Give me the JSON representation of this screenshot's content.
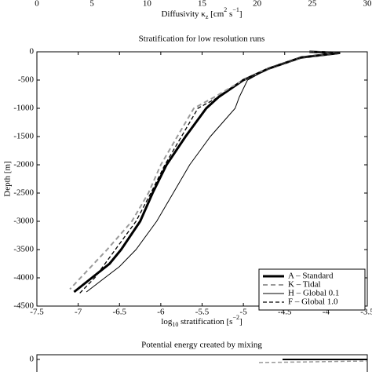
{
  "chart_data": [
    {
      "type": "line",
      "title": "Stratification for low resolution runs",
      "xlabel": [
        "log",
        "10",
        " stratification [s",
        "−2",
        "]"
      ],
      "ylabel": "Depth [m]",
      "top_xlabel": [
        "Diffusivity κ",
        "z",
        " [cm",
        "2",
        " s",
        "−1",
        "]"
      ],
      "xlim": [
        -7.5,
        -3.5
      ],
      "xticks": [
        -7.5,
        -7,
        -6.5,
        -6,
        -5.5,
        -5,
        -4.5,
        -4,
        -3.5
      ],
      "ylim": [
        -4500,
        0
      ],
      "yticks": [
        0,
        -500,
        -1000,
        -1500,
        -2000,
        -2500,
        -3000,
        -3500,
        -4000,
        -4500
      ],
      "top_xlim": [
        0,
        30
      ],
      "top_xticks": [
        0,
        5,
        10,
        15,
        20,
        25,
        30
      ],
      "legend": "lower right",
      "series": [
        {
          "name": "A – Standard",
          "color": "#000000",
          "width": 3,
          "dash": "none",
          "x": [
            -4.2,
            -3.83,
            -4.3,
            -4.7,
            -5.0,
            -5.3,
            -5.45,
            -5.7,
            -5.93,
            -6.1,
            -6.25,
            -6.48,
            -6.62,
            -7.05
          ],
          "y": [
            0,
            -20,
            -100,
            -300,
            -500,
            -800,
            -1000,
            -1500,
            -2000,
            -2500,
            -3000,
            -3500,
            -3750,
            -4250
          ]
        },
        {
          "name": "K – Tidal",
          "color": "#999999",
          "width": 2,
          "dash": "6,4",
          "x": [
            -4.2,
            -3.83,
            -4.3,
            -4.7,
            -5.0,
            -5.35,
            -5.6,
            -5.8,
            -6.0,
            -6.15,
            -6.35,
            -6.65,
            -7.1
          ],
          "y": [
            0,
            -20,
            -100,
            -300,
            -500,
            -800,
            -1000,
            -1500,
            -2000,
            -2500,
            -3000,
            -3500,
            -4200
          ]
        },
        {
          "name": "H – Global 0.1",
          "color": "#000000",
          "width": 1,
          "dash": "none",
          "x": [
            -4.2,
            -3.83,
            -4.3,
            -4.7,
            -4.95,
            -5.05,
            -5.1,
            -5.4,
            -5.65,
            -5.85,
            -6.05,
            -6.3,
            -6.5,
            -6.9
          ],
          "y": [
            0,
            -20,
            -100,
            -300,
            -500,
            -800,
            -1000,
            -1500,
            -2000,
            -2500,
            -3000,
            -3500,
            -3800,
            -4250
          ]
        },
        {
          "name": "F – Global 1.0",
          "color": "#000000",
          "width": 1.3,
          "dash": "5,3",
          "x": [
            -4.2,
            -3.83,
            -4.3,
            -4.7,
            -5.0,
            -5.3,
            -5.55,
            -5.75,
            -5.95,
            -6.12,
            -6.3,
            -6.55,
            -6.8,
            -7.0
          ],
          "y": [
            0,
            -20,
            -100,
            -300,
            -500,
            -800,
            -1000,
            -1500,
            -2000,
            -2500,
            -3000,
            -3500,
            -4000,
            -4300
          ]
        }
      ]
    },
    {
      "type": "line",
      "title": "Potential energy created by mixing",
      "yticks": [
        0
      ]
    }
  ]
}
